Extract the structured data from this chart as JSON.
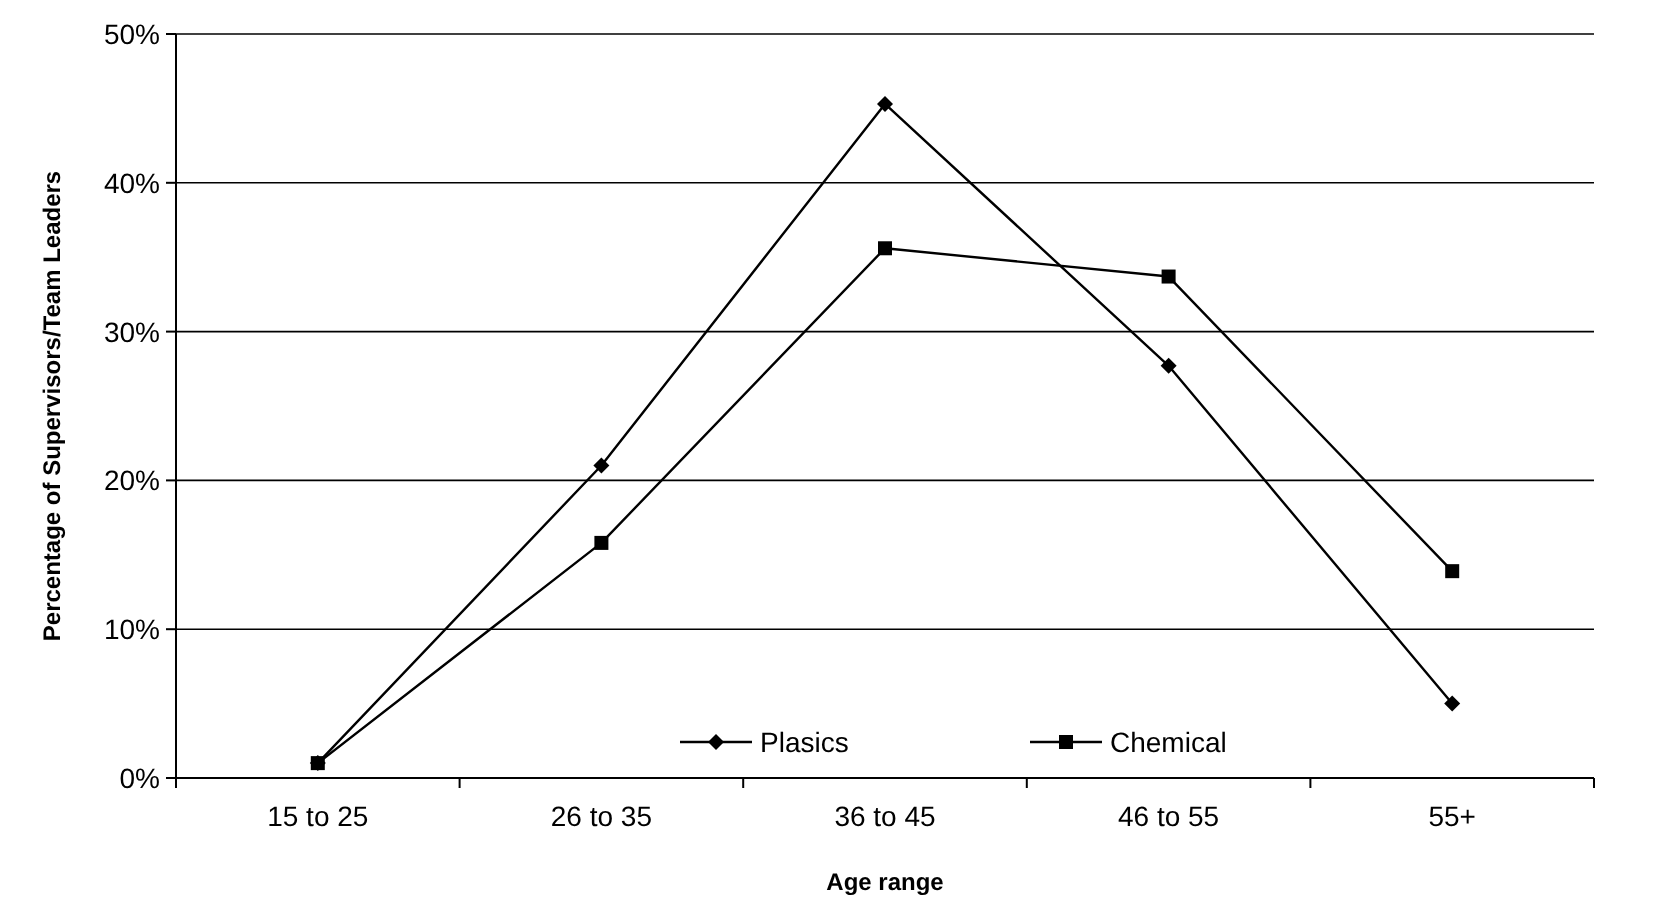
{
  "chart_data": {
    "type": "line",
    "xlabel": "Age range",
    "ylabel": "Percentage of Supervisors/Team Leaders",
    "categories": [
      "15 to 25",
      "26 to 35",
      "36 to 45",
      "46 to 55",
      "55+"
    ],
    "series": [
      {
        "name": "Plasics",
        "color": "#000000",
        "marker": "diamond",
        "values": [
          1,
          21,
          45.3,
          27.7,
          5
        ]
      },
      {
        "name": "Chemical",
        "color": "#000000",
        "marker": "square",
        "values": [
          1,
          15.8,
          35.6,
          33.7,
          13.9
        ]
      }
    ],
    "ylim": [
      0,
      50
    ],
    "yticks": [
      {
        "value": 0,
        "label": "0%"
      },
      {
        "value": 10,
        "label": "10%"
      },
      {
        "value": 20,
        "label": "20%"
      },
      {
        "value": 30,
        "label": "30%"
      },
      {
        "value": 40,
        "label": "40%"
      },
      {
        "value": 50,
        "label": "50%"
      }
    ],
    "grid": "y",
    "legend": "bottom",
    "line_style": "solid"
  }
}
